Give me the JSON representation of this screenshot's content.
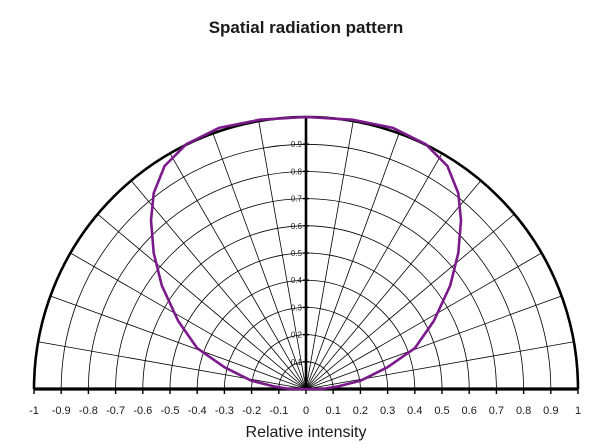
{
  "chart_data": {
    "type": "line",
    "coordinate_system": "polar-half",
    "title": "Spatial radiation pattern",
    "xlabel": "Relative intensity",
    "ylabel": "",
    "xlim": [
      -1,
      1
    ],
    "ylim": [
      0,
      1
    ],
    "x_ticks": [
      "-1",
      "-0.9",
      "-0.8",
      "-0.7",
      "-0.6",
      "-0.5",
      "-0.4",
      "-0.3",
      "-0.2",
      "-0.1",
      "0",
      "0.1",
      "0.2",
      "0.3",
      "0.4",
      "0.5",
      "0.6",
      "0.7",
      "0.8",
      "0.9",
      "1"
    ],
    "y_ticks": [
      "0.1",
      "0.2",
      "0.3",
      "0.4",
      "0.5",
      "0.6",
      "0.7",
      "0.8",
      "0.9"
    ],
    "grid": true,
    "radial_lines_every_deg": 10,
    "colors": {
      "curve": "#7b1a8a",
      "grid": "#000000"
    },
    "series": [
      {
        "name": "",
        "x": [
          0.0,
          0.06,
          0.12,
          0.2,
          0.3,
          0.4,
          0.47,
          0.53,
          0.56,
          0.57,
          0.56,
          0.52,
          0.44,
          0.32,
          0.17,
          0.0,
          -0.17,
          -0.32,
          -0.44,
          -0.52,
          -0.56,
          -0.57,
          -0.56,
          -0.53,
          -0.47,
          -0.4,
          -0.3,
          -0.2,
          -0.12,
          -0.06,
          0.0
        ],
        "y": [
          0.0,
          0.0,
          0.01,
          0.03,
          0.08,
          0.15,
          0.25,
          0.38,
          0.5,
          0.62,
          0.72,
          0.82,
          0.9,
          0.96,
          0.99,
          1.0,
          0.99,
          0.96,
          0.9,
          0.82,
          0.72,
          0.62,
          0.5,
          0.38,
          0.25,
          0.15,
          0.08,
          0.03,
          0.01,
          0.0,
          0.0
        ]
      }
    ]
  }
}
